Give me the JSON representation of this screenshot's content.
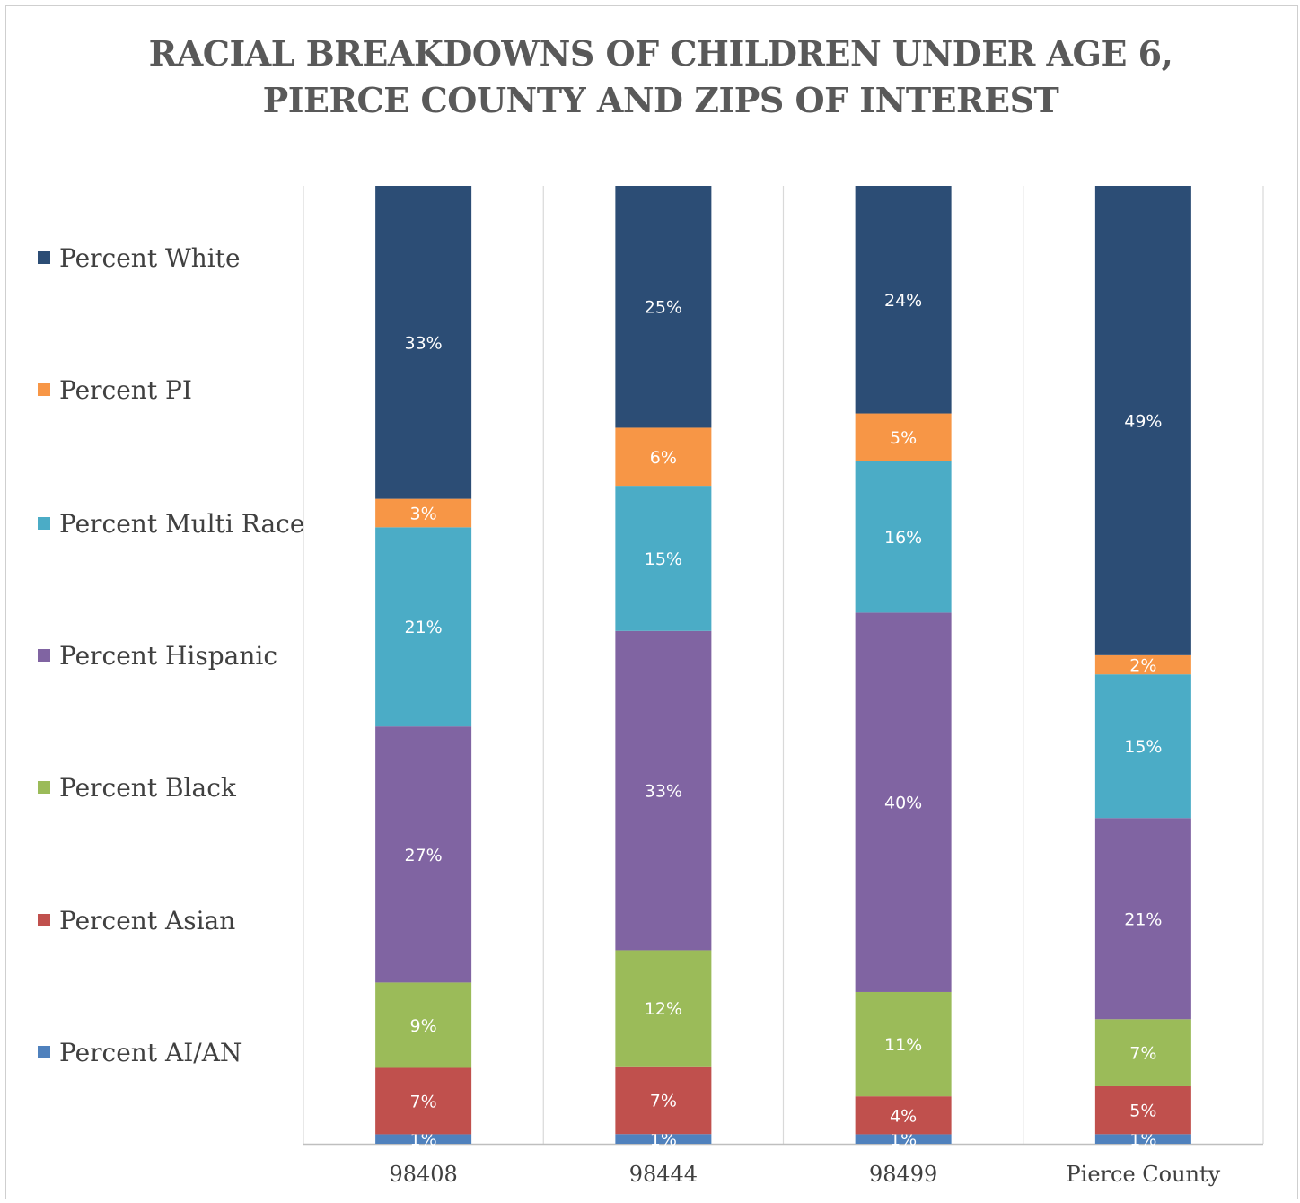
{
  "chart_data": {
    "type": "bar",
    "stacked": true,
    "percent_stacked": true,
    "title": "RACIAL BREAKDOWNS OF CHILDREN UNDER AGE 6,\nPIERCE COUNTY AND ZIPS OF INTEREST",
    "title_lines": [
      "RACIAL BREAKDOWNS OF CHILDREN UNDER AGE 6,",
      "PIERCE COUNTY AND ZIPS OF INTEREST"
    ],
    "categories": [
      "98408",
      "98444",
      "98499",
      "Pierce County"
    ],
    "ylim": [
      0,
      100
    ],
    "grid": true,
    "legend_position": "left",
    "series": [
      {
        "name": "Percent AI/AN",
        "color": "#4f81bd",
        "values": [
          1,
          1,
          1,
          1
        ],
        "labels": [
          "1%",
          "1%",
          "1%",
          "1%"
        ]
      },
      {
        "name": "Percent Asian",
        "color": "#c0504d",
        "values": [
          7,
          7,
          4,
          5
        ],
        "labels": [
          "7%",
          "7%",
          "4%",
          "5%"
        ]
      },
      {
        "name": "Percent Black",
        "color": "#9bbb59",
        "values": [
          9,
          12,
          11,
          7
        ],
        "labels": [
          "9%",
          "12%",
          "11%",
          "7%"
        ]
      },
      {
        "name": "Percent Hispanic",
        "color": "#8064a2",
        "values": [
          27,
          33,
          40,
          21
        ],
        "labels": [
          "27%",
          "33%",
          "40%",
          "21%"
        ]
      },
      {
        "name": "Percent Multi Race",
        "color": "#4bacc6",
        "values": [
          21,
          15,
          16,
          15
        ],
        "labels": [
          "21%",
          "15%",
          "16%",
          "15%"
        ]
      },
      {
        "name": "Percent PI",
        "color": "#f79646",
        "values": [
          3,
          6,
          5,
          2
        ],
        "labels": [
          "3%",
          "6%",
          "5%",
          "2%"
        ]
      },
      {
        "name": "Percent White",
        "color": "#2c4d75",
        "values": [
          33,
          25,
          24,
          49
        ],
        "labels": [
          "33%",
          "25%",
          "24%",
          "49%"
        ]
      }
    ]
  }
}
